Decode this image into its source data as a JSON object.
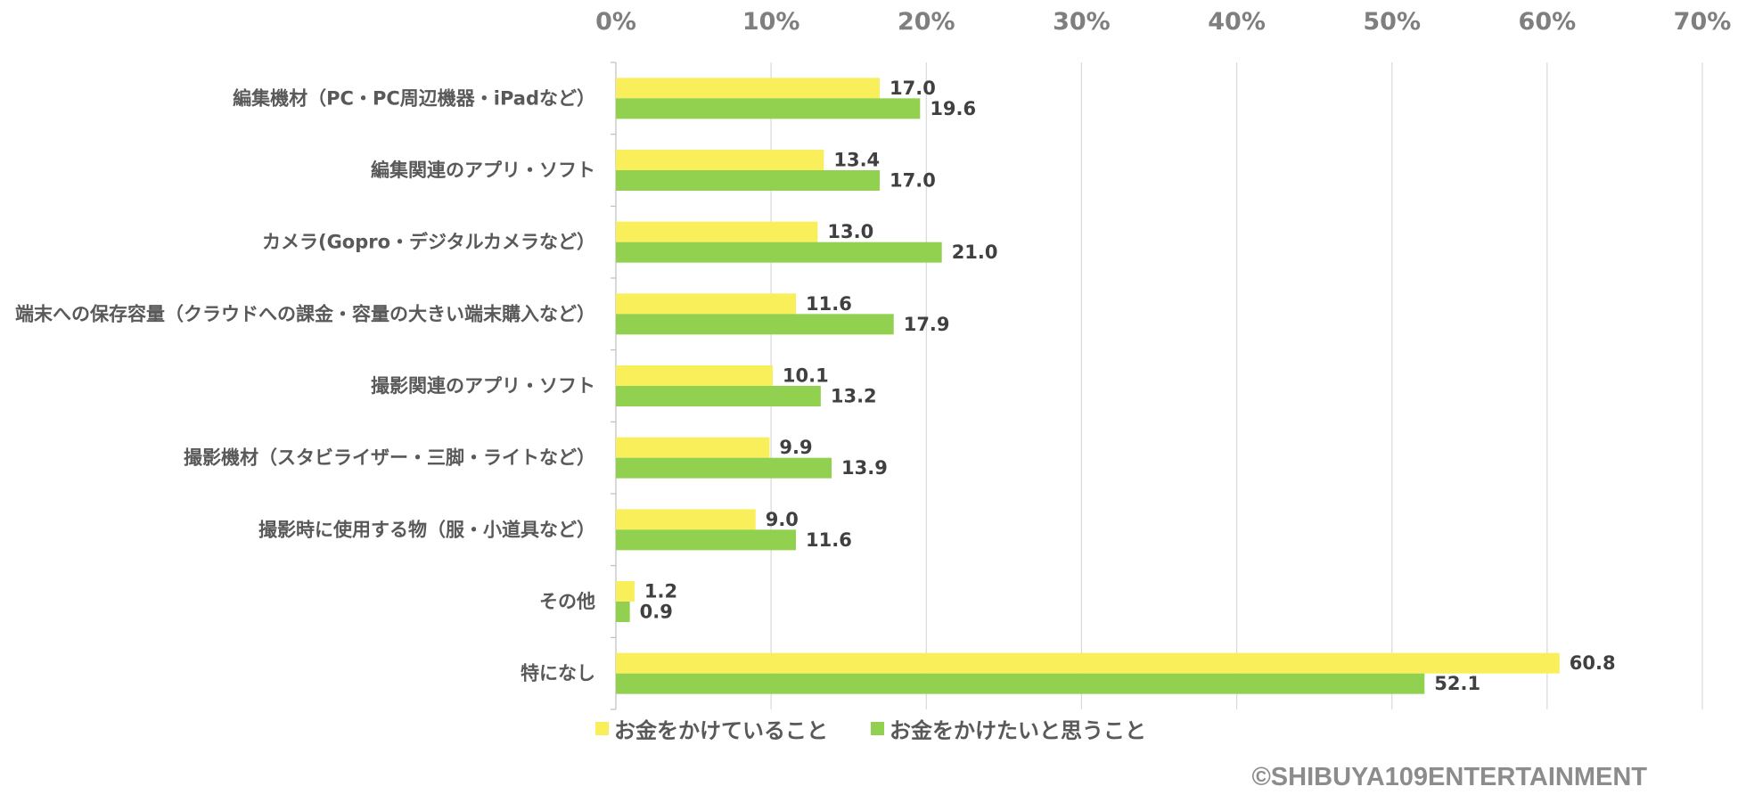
{
  "chart_data": {
    "type": "bar",
    "orientation": "horizontal",
    "categories": [
      "編集機材（PC・PC周辺機器・iPadなど）",
      "編集関連のアプリ・ソフト",
      "カメラ(Gopro・デジタルカメラなど）",
      "端末への保存容量（クラウドへの課金・容量の大きい端末購入など）",
      "撮影関連のアプリ・ソフト",
      "撮影機材（スタビライザー・三脚・ライトなど）",
      "撮影時に使用する物（服・小道具など）",
      "その他",
      "特になし"
    ],
    "series": [
      {
        "name": "お金をかけていること",
        "color": "#f8ef5a",
        "values": [
          17.0,
          13.4,
          13.0,
          11.6,
          10.1,
          9.9,
          9.0,
          1.2,
          60.8
        ]
      },
      {
        "name": "お金をかけたいと思うこと",
        "color": "#92d050",
        "values": [
          19.6,
          17.0,
          21.0,
          17.9,
          13.2,
          13.9,
          11.6,
          0.9,
          52.1
        ]
      }
    ],
    "xlim": [
      0,
      70
    ],
    "xticks": [
      0,
      10,
      20,
      30,
      40,
      50,
      60,
      70
    ],
    "tick_suffix": "%",
    "axis_position": "top",
    "grid": true,
    "legend_position": "bottom"
  },
  "copyright": "©SHIBUYA109ENTERTAINMENT"
}
